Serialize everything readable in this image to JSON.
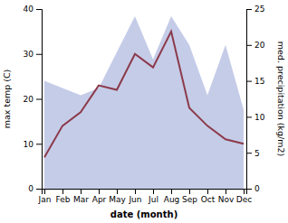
{
  "chart_data": {
    "type": "line",
    "xlabel": "date (month)",
    "ylabel": "max temp (C)",
    "y2label": "med. precipitation (kg/m2)",
    "categories": [
      "Jan",
      "Feb",
      "Mar",
      "Apr",
      "May",
      "Jun",
      "Jul",
      "Aug",
      "Sep",
      "Oct",
      "Nov",
      "Dec"
    ],
    "series": [
      {
        "type": "area",
        "axis": "y2",
        "color": "#c5cce8",
        "values": [
          15,
          14,
          13,
          14,
          19,
          24,
          18,
          24,
          20,
          13,
          20,
          11
        ]
      },
      {
        "type": "line",
        "color": "#8b3a4a",
        "values": [
          7,
          14,
          17,
          23,
          22,
          30,
          27,
          35,
          18,
          14,
          11,
          10
        ]
      }
    ],
    "ylim": [
      0,
      40
    ],
    "yticks": [
      0,
      10,
      20,
      30,
      40
    ],
    "y2lim": [
      0,
      25
    ],
    "y2ticks": [
      0,
      5,
      10,
      15,
      20,
      25
    ],
    "grid": false
  }
}
